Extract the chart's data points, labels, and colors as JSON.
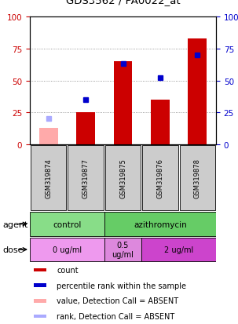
{
  "title": "GDS3562 / PA0022_at",
  "samples": [
    "GSM319874",
    "GSM319877",
    "GSM319875",
    "GSM319876",
    "GSM319878"
  ],
  "count_values": [
    null,
    25,
    65,
    35,
    83
  ],
  "count_absent": [
    13,
    null,
    null,
    null,
    null
  ],
  "rank_values": [
    null,
    35,
    63,
    52,
    70
  ],
  "rank_absent": [
    20,
    null,
    null,
    null,
    null
  ],
  "count_color": "#cc0000",
  "rank_color": "#0000cc",
  "count_absent_color": "#ffaaaa",
  "rank_absent_color": "#aaaaff",
  "agent_color_control": "#88dd88",
  "agent_color_azithromycin": "#66cc66",
  "agent_control_label": "control",
  "agent_azithromycin_label": "azithromycin",
  "dose_color_light": "#ee99ee",
  "dose_color_dark": "#cc44cc",
  "dose_labels": [
    "0 ug/ml",
    "0.5\nug/ml",
    "2 ug/ml"
  ],
  "ylim": [
    0,
    100
  ],
  "yticks": [
    0,
    25,
    50,
    75,
    100
  ],
  "bar_width": 0.5,
  "legend_items": [
    {
      "label": "count",
      "color": "#cc0000"
    },
    {
      "label": "percentile rank within the sample",
      "color": "#0000cc"
    },
    {
      "label": "value, Detection Call = ABSENT",
      "color": "#ffaaaa"
    },
    {
      "label": "rank, Detection Call = ABSENT",
      "color": "#aaaaff"
    }
  ],
  "sample_box_color": "#cccccc",
  "title_fontsize": 9.5,
  "tick_fontsize": 7.5,
  "label_fontsize": 8,
  "legend_fontsize": 7
}
